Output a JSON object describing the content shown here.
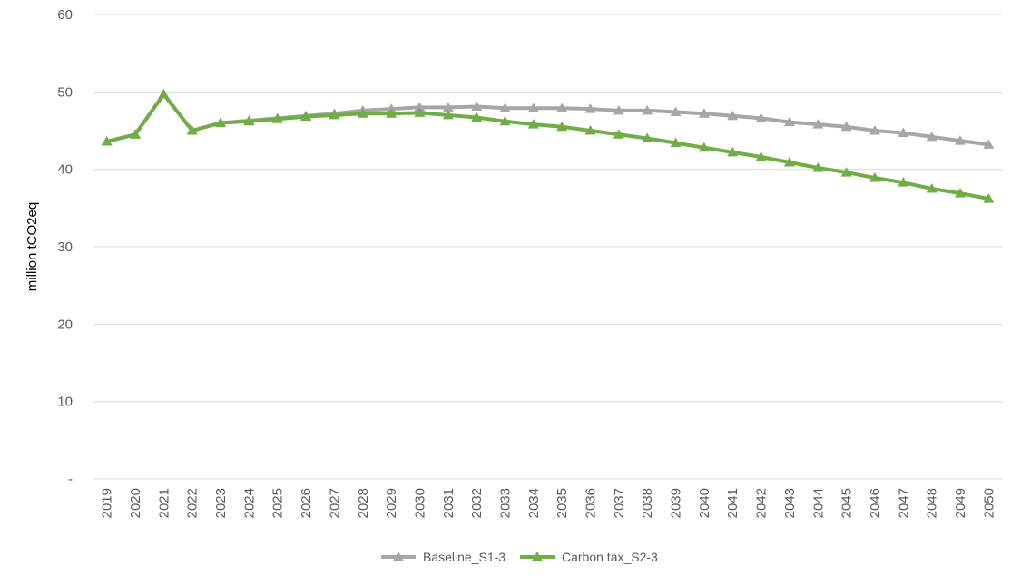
{
  "chart_data": {
    "type": "line",
    "title": "",
    "xlabel": "",
    "ylabel": "million tCO2eq",
    "ylim": [
      0,
      60
    ],
    "y_ticks": [
      0,
      10,
      20,
      30,
      40,
      50,
      60
    ],
    "y_tick_labels": [
      "-",
      "10",
      "20",
      "30",
      "40",
      "50",
      "60"
    ],
    "grid": "horizontal",
    "legend_position": "bottom",
    "x": [
      "2019",
      "2020",
      "2021",
      "2022",
      "2023",
      "2024",
      "2025",
      "2026",
      "2027",
      "2028",
      "2029",
      "2030",
      "2031",
      "2032",
      "2033",
      "2034",
      "2035",
      "2036",
      "2037",
      "2038",
      "2039",
      "2040",
      "2041",
      "2042",
      "2043",
      "2044",
      "2045",
      "2046",
      "2047",
      "2048",
      "2049",
      "2050"
    ],
    "series": [
      {
        "name": "Baseline_S1-3",
        "color": "#a6a6a6",
        "marker": "triangle",
        "values": [
          43.6,
          44.5,
          49.7,
          45.0,
          46.0,
          46.3,
          46.6,
          46.9,
          47.2,
          47.6,
          47.8,
          48.0,
          48.0,
          48.1,
          47.9,
          47.9,
          47.9,
          47.8,
          47.6,
          47.6,
          47.4,
          47.2,
          46.9,
          46.6,
          46.1,
          45.8,
          45.5,
          45.0,
          44.7,
          44.2,
          43.7,
          43.2
        ]
      },
      {
        "name": "Carbon tax_S2-3",
        "color": "#70ad47",
        "marker": "triangle",
        "values": [
          43.6,
          44.5,
          49.7,
          45.0,
          46.0,
          46.2,
          46.5,
          46.8,
          47.0,
          47.2,
          47.2,
          47.3,
          47.0,
          46.7,
          46.2,
          45.8,
          45.5,
          45.0,
          44.5,
          44.0,
          43.4,
          42.8,
          42.2,
          41.6,
          40.9,
          40.2,
          39.6,
          38.9,
          38.3,
          37.5,
          36.9,
          36.2
        ]
      }
    ]
  }
}
